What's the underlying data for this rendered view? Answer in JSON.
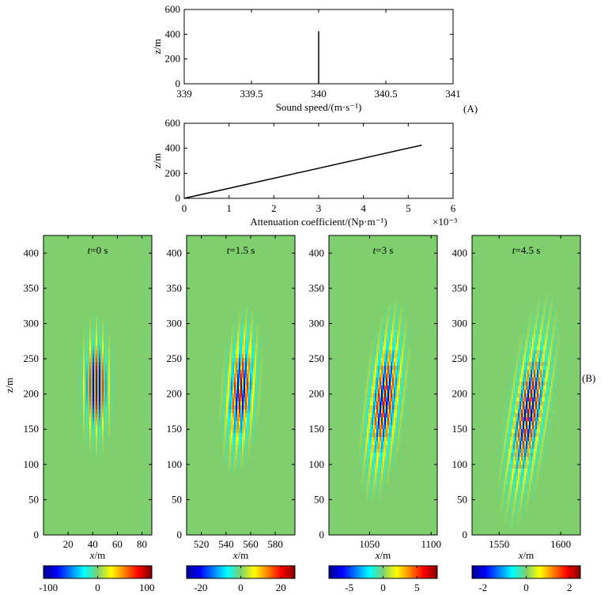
{
  "panels": {
    "a_label": "(A)",
    "b_label": "(B)"
  },
  "chart_data": [
    {
      "type": "line",
      "name": "sound-speed-profile",
      "xlabel": "Sound speed/(m·s⁻¹)",
      "ylabel": "z/m",
      "xlim": [
        339,
        341
      ],
      "ylim": [
        0,
        600
      ],
      "xticks": [
        "339",
        "339.5",
        "340",
        "340.5",
        "341"
      ],
      "yticks": [
        "0",
        "200",
        "400",
        "600"
      ],
      "series": [
        {
          "name": "sound speed",
          "x": [
            340,
            340
          ],
          "y": [
            0,
            425
          ]
        }
      ]
    },
    {
      "type": "line",
      "name": "attenuation-profile",
      "xlabel": "Attenuation coefficient/(Np·m⁻¹)",
      "ylabel": "z/m",
      "xlim": [
        0,
        6
      ],
      "ylim": [
        0,
        600
      ],
      "x_multiplier": "×10⁻³",
      "xticks": [
        "0",
        "1",
        "2",
        "3",
        "4",
        "5",
        "6"
      ],
      "yticks": [
        "0",
        "200",
        "400",
        "600"
      ],
      "series": [
        {
          "name": "attenuation",
          "x": [
            0,
            5.3
          ],
          "y": [
            0,
            425
          ]
        }
      ]
    },
    {
      "type": "heatmap",
      "name": "pulse-t0",
      "title_var": "t",
      "title_rest": "=0 s",
      "xlabel_var": "x",
      "xlabel_rest": "/m",
      "ylabel": "z/m",
      "xlim": [
        0,
        88
      ],
      "ylim": [
        0,
        425
      ],
      "xticks": [
        20,
        40,
        60,
        80
      ],
      "yticks": [
        0,
        50,
        100,
        150,
        200,
        250,
        300,
        350,
        400
      ],
      "center": [
        43,
        212
      ],
      "colorbar": {
        "range": [
          -110,
          110
        ],
        "ticks": [
          "-100",
          "0",
          "100"
        ]
      }
    },
    {
      "type": "heatmap",
      "name": "pulse-t1.5",
      "title_var": "t",
      "title_rest": "=1.5 s",
      "xlabel_var": "x",
      "xlabel_rest": "/m",
      "ylabel": "",
      "xlim": [
        508,
        596
      ],
      "ylim": [
        0,
        425
      ],
      "xticks": [
        520,
        540,
        560,
        580
      ],
      "yticks": [
        0,
        50,
        100,
        150,
        200,
        250,
        300,
        350,
        400
      ],
      "center": [
        552,
        205
      ],
      "colorbar": {
        "range": [
          -27,
          27
        ],
        "ticks": [
          "-20",
          "0",
          "20"
        ]
      }
    },
    {
      "type": "heatmap",
      "name": "pulse-t3",
      "title_var": "t",
      "title_rest": "=3 s",
      "xlabel_var": "x",
      "xlabel_rest": "/m",
      "ylabel": "",
      "xlim": [
        1017,
        1105
      ],
      "ylim": [
        0,
        425
      ],
      "xticks": [
        1050,
        1100
      ],
      "yticks": [
        0,
        50,
        100,
        150,
        200,
        250,
        300,
        350,
        400
      ],
      "center": [
        1062,
        190
      ],
      "colorbar": {
        "range": [
          -8,
          8
        ],
        "ticks": [
          "-5",
          "0",
          "5"
        ]
      }
    },
    {
      "type": "heatmap",
      "name": "pulse-t4.5",
      "title_var": "t",
      "title_rest": "=4.5 s",
      "xlabel_var": "x",
      "xlabel_rest": "/m",
      "ylabel": "",
      "xlim": [
        1528,
        1616
      ],
      "ylim": [
        0,
        425
      ],
      "xticks": [
        1550,
        1600
      ],
      "yticks": [
        0,
        50,
        100,
        150,
        200,
        250,
        300,
        350,
        400
      ],
      "center": [
        1574,
        175
      ],
      "colorbar": {
        "range": [
          -2.5,
          2.5
        ],
        "ticks": [
          "-2",
          "0",
          "2"
        ]
      }
    }
  ]
}
